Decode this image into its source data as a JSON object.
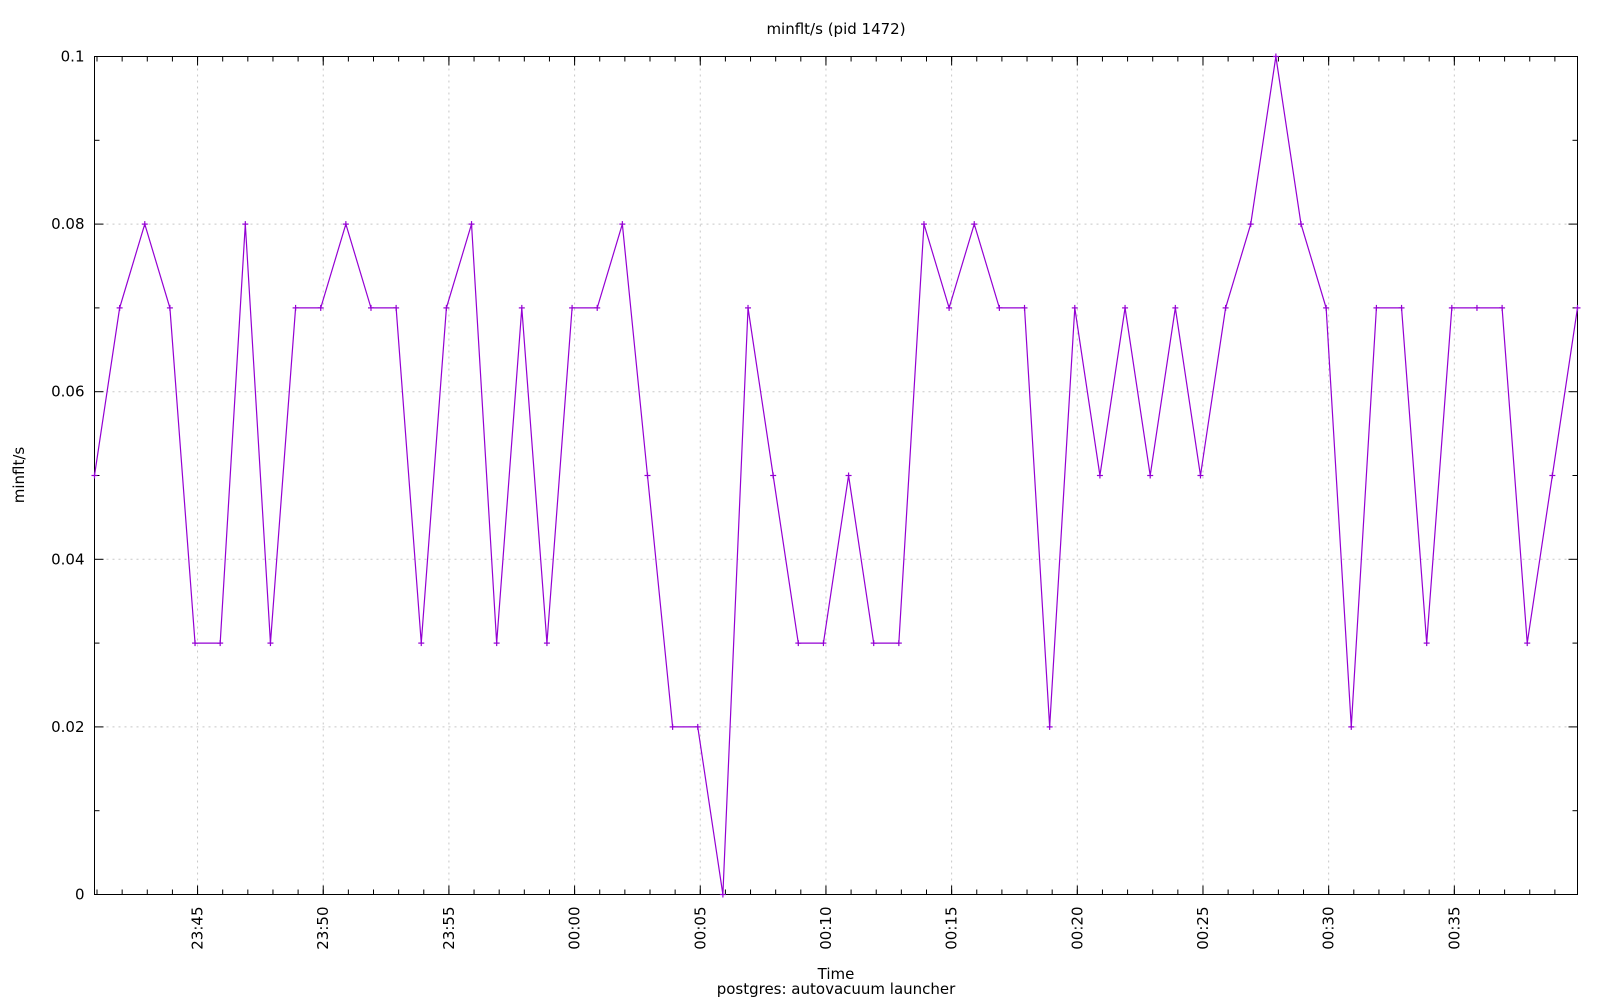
{
  "chart_data": {
    "type": "line",
    "title": "minflt/s (pid 1472)",
    "xlabel": "Time",
    "subtitle": "postgres: autovacuum launcher",
    "ylabel": "minflt/s",
    "ylim": [
      0,
      0.1
    ],
    "yticks": [
      "0",
      "0.02",
      "0.04",
      "0.06",
      "0.08",
      "0.1"
    ],
    "ytick_values": [
      0,
      0.02,
      0.04,
      0.06,
      0.08,
      0.1
    ],
    "xlim": [
      "23:40:54",
      "00:39:54"
    ],
    "xticks": [
      "23:45",
      "23:50",
      "23:55",
      "00:00",
      "00:05",
      "00:10",
      "00:15",
      "00:20",
      "00:25",
      "00:30",
      "00:35"
    ],
    "grid": true,
    "color": "#9400d3",
    "series": [
      {
        "x": [
          "23:40:54",
          "23:41:54",
          "23:42:54",
          "23:43:54",
          "23:44:54",
          "23:45:54",
          "23:46:54",
          "23:47:54",
          "23:48:54",
          "23:49:54",
          "23:50:54",
          "23:51:54",
          "23:52:54",
          "23:53:54",
          "23:54:54",
          "23:55:54",
          "23:56:54",
          "23:57:54",
          "23:58:54",
          "23:59:54",
          "00:00:54",
          "00:01:54",
          "00:02:54",
          "00:03:54",
          "00:04:54",
          "00:05:54",
          "00:06:54",
          "00:07:54",
          "00:08:54",
          "00:09:54",
          "00:10:54",
          "00:11:54",
          "00:12:54",
          "00:13:54",
          "00:14:54",
          "00:15:54",
          "00:16:54",
          "00:17:54",
          "00:18:54",
          "00:19:54",
          "00:20:54",
          "00:21:54",
          "00:22:54",
          "00:23:54",
          "00:24:54",
          "00:25:54",
          "00:26:54",
          "00:27:54",
          "00:28:54",
          "00:29:54",
          "00:30:54",
          "00:31:54",
          "00:32:54",
          "00:33:54",
          "00:34:54",
          "00:35:54",
          "00:36:54",
          "00:37:54",
          "00:38:54",
          "00:39:54"
        ],
        "values": [
          0.05,
          0.07,
          0.08,
          0.07,
          0.03,
          0.03,
          0.08,
          0.03,
          0.07,
          0.07,
          0.08,
          0.07,
          0.07,
          0.03,
          0.07,
          0.08,
          0.03,
          0.07,
          0.03,
          0.07,
          0.07,
          0.08,
          0.05,
          0.02,
          0.02,
          0.0,
          0.07,
          0.05,
          0.03,
          0.03,
          0.05,
          0.03,
          0.03,
          0.08,
          0.07,
          0.08,
          0.07,
          0.07,
          0.02,
          0.07,
          0.05,
          0.07,
          0.05,
          0.07,
          0.05,
          0.07,
          0.08,
          0.1,
          0.08,
          0.07,
          0.02,
          0.07,
          0.07,
          0.03,
          0.07,
          0.07,
          0.07,
          0.03,
          0.05,
          0.07
        ]
      }
    ]
  }
}
